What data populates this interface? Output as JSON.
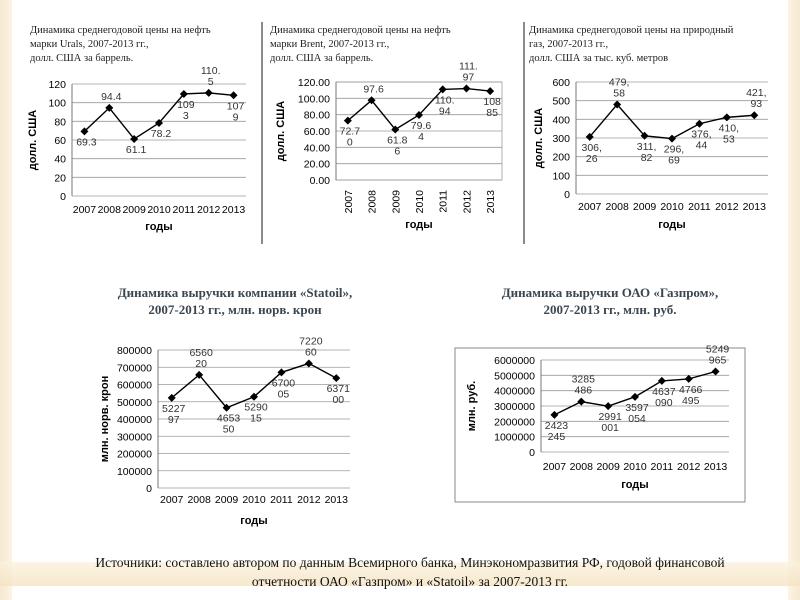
{
  "captions": {
    "urals": "Динамика среднегодовой цены на нефть\nмарки Urals, 2007-2013 гг.,\nдолл. США за баррель.",
    "brent": "Динамика среднегодовой цены на нефть\nмарки Brent, 2007-2013 гг.,\nдолл. США за баррель.",
    "gas": "Динамика среднегодовой цены на природный\nгаз, 2007-2013 гг.,\n долл. США за тыс. куб. метров",
    "statoil": "Динамика выручки компании «Statoil»,\n2007-2013 гг., млн. норв. крон",
    "gazprom": "Динамика выручки ОАО «Газпром»,\n2007-2013 гг., млн. руб."
  },
  "sources": "Источники: составлено автором по данным Всемирного банка, Минэкономразвития РФ, годовой финансовой\nотчетности ОАО «Газпром» и  «Statoil» за 2007-2013 гг.",
  "colors": {
    "line": "#000000",
    "grid": "#9a9a9a",
    "border": "#8a8a8a"
  },
  "chart_data": [
    {
      "id": "urals",
      "type": "line",
      "categories": [
        "2007",
        "2008",
        "2009",
        "2010",
        "2011",
        "2012",
        "2013"
      ],
      "values": [
        69.3,
        94.4,
        61.1,
        78.2,
        109.3,
        110.5,
        107.9
      ],
      "labels": [
        "69.3",
        "94.4",
        "61.1",
        "78.2",
        "109\n3",
        "110.\n5",
        "107\n9"
      ],
      "ylim": [
        0,
        120
      ],
      "yticks": [
        "0",
        "20",
        "40",
        "60",
        "80",
        "100",
        "120"
      ],
      "xlabel": "годы",
      "ylabel": "долл. США"
    },
    {
      "id": "brent",
      "type": "line",
      "categories": [
        "2007",
        "2008",
        "2009",
        "2010",
        "2011",
        "2012",
        "2013"
      ],
      "values": [
        72.7,
        97.6,
        61.86,
        79.64,
        110.94,
        111.97,
        108.85
      ],
      "labels": [
        "72.7\n0",
        "97.6",
        "61.8\n6",
        "79.6\n4",
        "110.\n94",
        "111.\n97",
        "108\n85"
      ],
      "ylim": [
        0,
        120
      ],
      "yticks": [
        "0.00",
        "20.00",
        "40.00",
        "60.00",
        "80.00",
        "100.00",
        "120.00"
      ],
      "xlabel": "годы",
      "ylabel": "долл. США"
    },
    {
      "id": "gas",
      "type": "line",
      "categories": [
        "2007",
        "2008",
        "2009",
        "2010",
        "2011",
        "2012",
        "2013"
      ],
      "values": [
        306.26,
        479.58,
        311.82,
        296.69,
        376.44,
        410.53,
        421.93
      ],
      "labels": [
        "306,\n26",
        "479,\n58",
        "311,\n82",
        "296,\n69",
        "376,\n44",
        "410,\n53",
        "421,\n93"
      ],
      "ylim": [
        0,
        600
      ],
      "yticks": [
        "0",
        "100",
        "200",
        "300",
        "400",
        "500",
        "600"
      ],
      "xlabel": "годы",
      "ylabel": "долл. США"
    },
    {
      "id": "statoil",
      "type": "line",
      "categories": [
        "2007",
        "2008",
        "2009",
        "2010",
        "2011",
        "2012",
        "2013"
      ],
      "values": [
        522797,
        656020,
        465350,
        529015,
        670005,
        722060,
        637100
      ],
      "labels": [
        "5227\n97",
        "6560\n20",
        "4653\n50",
        "5290\n15",
        "6700\n05",
        "7220\n60",
        "6371\n00"
      ],
      "ylim": [
        0,
        800000
      ],
      "yticks": [
        "0",
        "100000",
        "200000",
        "300000",
        "400000",
        "500000",
        "600000",
        "700000",
        "800000"
      ],
      "xlabel": "годы",
      "ylabel": "млн. норв. крон"
    },
    {
      "id": "gazprom",
      "type": "line",
      "categories": [
        "2007",
        "2008",
        "2009",
        "2010",
        "2011",
        "2012",
        "2013"
      ],
      "values": [
        2423245,
        3285486,
        2991001,
        3597054,
        4637090,
        4766495,
        5249965
      ],
      "labels": [
        "2423\n245",
        "3285\n486",
        "2991\n001",
        "3597\n054",
        "4637\n090",
        "4766\n495",
        "5249\n965"
      ],
      "ylim": [
        0,
        6000000
      ],
      "yticks": [
        "0",
        "1000000",
        "2000000",
        "3000000",
        "4000000",
        "5000000",
        "6000000"
      ],
      "xlabel": "годы",
      "ylabel": "млн. руб."
    }
  ]
}
